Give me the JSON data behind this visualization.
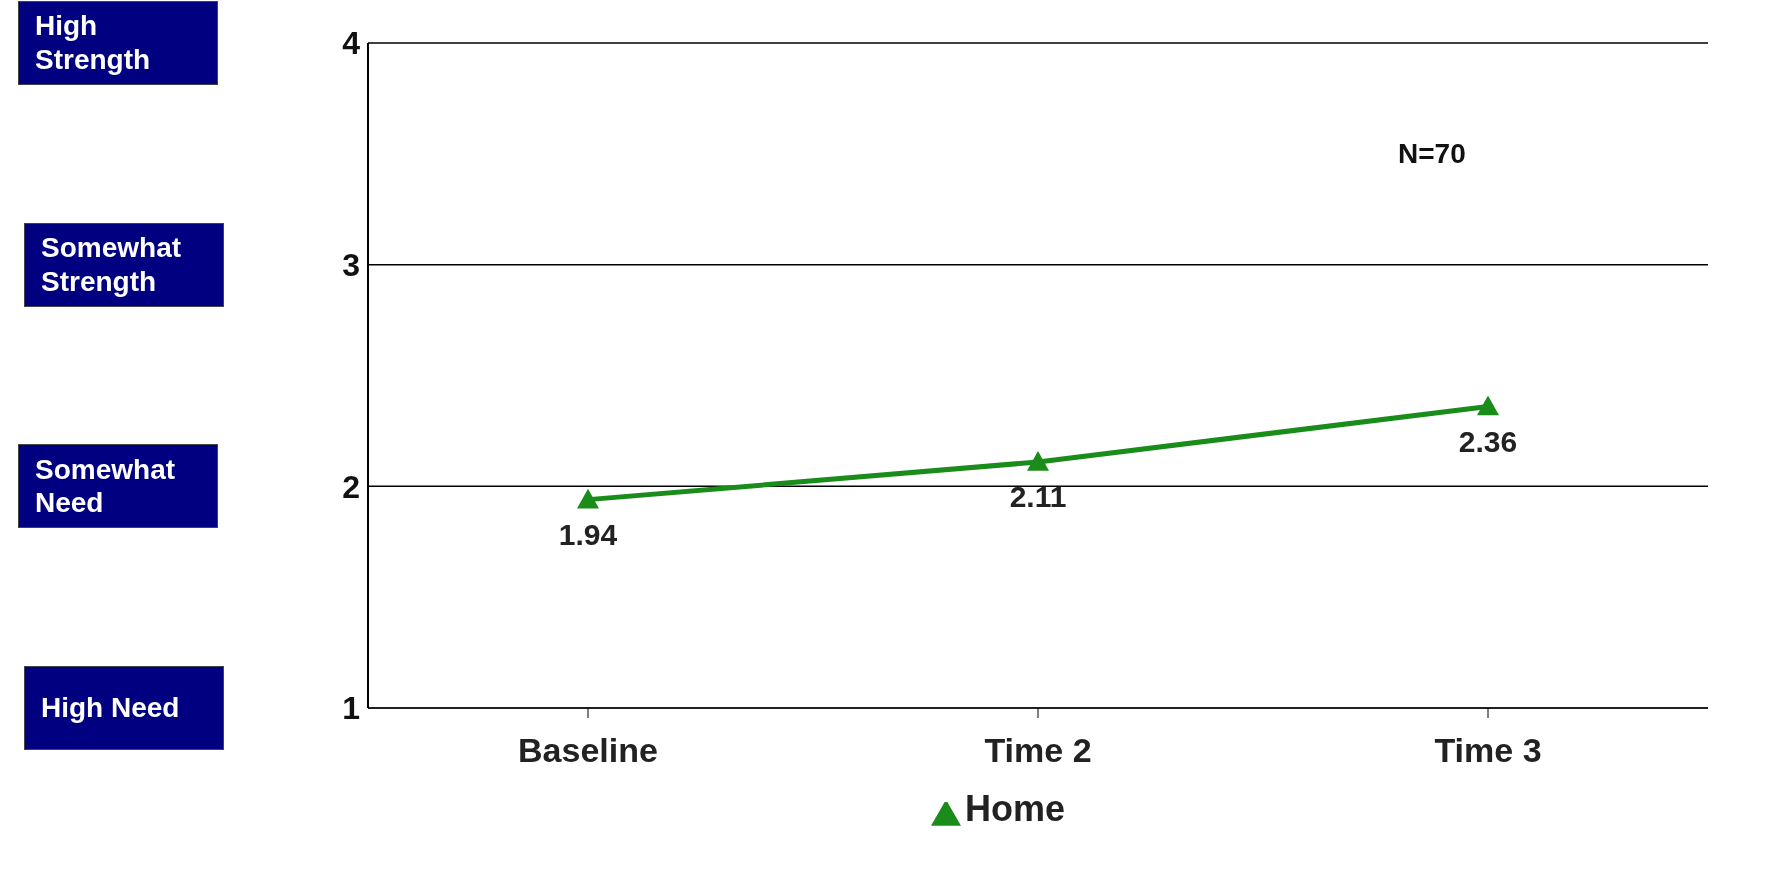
{
  "chart_data": {
    "type": "line",
    "categories": [
      "Baseline",
      "Time 2",
      "Time 3"
    ],
    "series": [
      {
        "name": "Home",
        "color": "#1a8c1a",
        "values": [
          1.94,
          2.11,
          2.36
        ]
      }
    ],
    "ylim": [
      1,
      4
    ],
    "yticks": [
      1,
      2,
      3,
      4
    ],
    "grid": "y",
    "legend": "bottom",
    "marker": "triangle",
    "line_style": "solid",
    "data_labels": true,
    "annotations": [
      "High Strength",
      "Somewhat Strength",
      "Somewhat Need",
      "High Need",
      "N=70"
    ]
  }
}
